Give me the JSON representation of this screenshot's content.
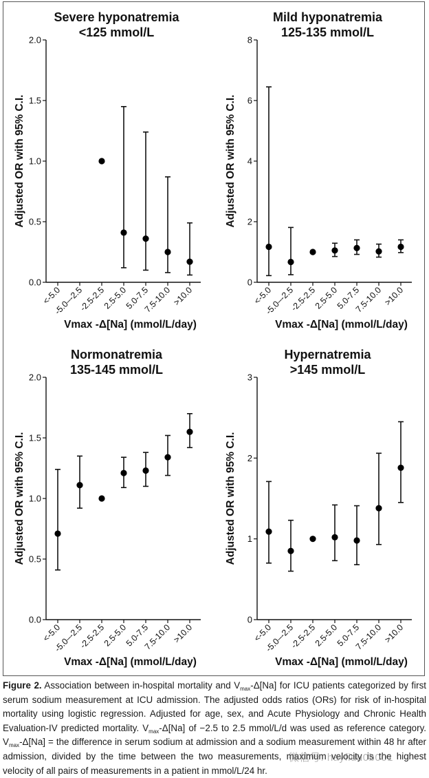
{
  "chart_data": [
    {
      "type": "scatter",
      "style": "point-with-error-bars",
      "title": "Severe hyponatremia",
      "subtitle": "<125 mmol/L",
      "xlabel": "Vmax -Δ[Na] (mmol/L/day)",
      "ylabel": "Adjusted OR with 95%  C.I.",
      "categories": [
        "<-5.0",
        "-5.0–-2.5",
        "-2.5-2.5",
        "2.5-5.0",
        "5.0-7.5",
        "7.5-10.0",
        ">10.0"
      ],
      "ylim": [
        0,
        2.0
      ],
      "yticks": [
        "0.0",
        "0.5",
        "1.0",
        "1.5",
        "2.0"
      ],
      "yticks_values": [
        0,
        0.5,
        1.0,
        1.5,
        2.0
      ],
      "points": [
        null,
        null,
        {
          "or": 1.0,
          "lo": null,
          "hi": null
        },
        {
          "or": 0.41,
          "lo": 0.12,
          "hi": 1.45
        },
        {
          "or": 0.36,
          "lo": 0.1,
          "hi": 1.24
        },
        {
          "or": 0.25,
          "lo": 0.08,
          "hi": 0.87
        },
        {
          "or": 0.17,
          "lo": 0.06,
          "hi": 0.49
        }
      ]
    },
    {
      "type": "scatter",
      "style": "point-with-error-bars",
      "title": "Mild hyponatremia",
      "subtitle": "125-135 mmol/L",
      "xlabel": "Vmax -Δ[Na] (mmol/L/day)",
      "ylabel": "Adjusted OR with 95%  C.I.",
      "categories": [
        "<-5.0",
        "-5.0–-2.5",
        "-2.5-2.5",
        "2.5-5.0",
        "5.0-7.5",
        "7.5-10.0",
        ">10.0"
      ],
      "ylim": [
        0,
        8
      ],
      "yticks": [
        "0",
        "2",
        "4",
        "6",
        "8"
      ],
      "yticks_values": [
        0,
        2,
        4,
        6,
        8
      ],
      "points": [
        {
          "or": 1.17,
          "lo": 0.22,
          "hi": 6.45
        },
        {
          "or": 0.67,
          "lo": 0.25,
          "hi": 1.81
        },
        {
          "or": 1.0,
          "lo": null,
          "hi": null
        },
        {
          "or": 1.05,
          "lo": 0.85,
          "hi": 1.29
        },
        {
          "or": 1.13,
          "lo": 0.92,
          "hi": 1.4
        },
        {
          "or": 1.02,
          "lo": 0.83,
          "hi": 1.26
        },
        {
          "or": 1.17,
          "lo": 0.98,
          "hi": 1.4
        }
      ]
    },
    {
      "type": "scatter",
      "style": "point-with-error-bars",
      "title": "Normonatremia",
      "subtitle": "135-145 mmol/L",
      "xlabel": "Vmax -Δ[Na] (mmol/L/day)",
      "ylabel": "Adjusted OR with 95%  C.I.",
      "categories": [
        "<-5.0",
        "-5.0–-2.5",
        "-2.5-2.5",
        "2.5-5.0",
        "5.0-7.5",
        "7.5-10.0",
        ">10.0"
      ],
      "ylim": [
        0,
        2.0
      ],
      "yticks": [
        "0.0",
        "0.5",
        "1.0",
        "1.5",
        "2.0"
      ],
      "yticks_values": [
        0,
        0.5,
        1.0,
        1.5,
        2.0
      ],
      "points": [
        {
          "or": 0.71,
          "lo": 0.41,
          "hi": 1.24
        },
        {
          "or": 1.11,
          "lo": 0.92,
          "hi": 1.35
        },
        {
          "or": 1.0,
          "lo": null,
          "hi": null
        },
        {
          "or": 1.21,
          "lo": 1.09,
          "hi": 1.34
        },
        {
          "or": 1.23,
          "lo": 1.1,
          "hi": 1.38
        },
        {
          "or": 1.34,
          "lo": 1.19,
          "hi": 1.52
        },
        {
          "or": 1.55,
          "lo": 1.42,
          "hi": 1.7
        }
      ]
    },
    {
      "type": "scatter",
      "style": "point-with-error-bars",
      "title": "Hypernatremia",
      "subtitle": ">145 mmol/L",
      "xlabel": "Vmax -Δ[Na] (mmol/L/day)",
      "ylabel": "Adjusted OR with 95%  C.I.",
      "categories": [
        "<-5.0",
        "-5.0–-2.5",
        "-2.5-2.5",
        "2.5-5.0",
        "5.0-7.5",
        "7.5-10.0",
        ">10.0"
      ],
      "ylim": [
        0,
        3
      ],
      "yticks": [
        "0",
        "1",
        "2",
        "3"
      ],
      "yticks_values": [
        0,
        1,
        2,
        3
      ],
      "points": [
        {
          "or": 1.09,
          "lo": 0.7,
          "hi": 1.71
        },
        {
          "or": 0.85,
          "lo": 0.6,
          "hi": 1.23
        },
        {
          "or": 1.0,
          "lo": null,
          "hi": null
        },
        {
          "or": 1.02,
          "lo": 0.73,
          "hi": 1.42
        },
        {
          "or": 0.98,
          "lo": 0.68,
          "hi": 1.41
        },
        {
          "or": 1.38,
          "lo": 0.93,
          "hi": 2.06
        },
        {
          "or": 1.88,
          "lo": 1.45,
          "hi": 2.45
        }
      ]
    }
  ],
  "caption": {
    "label": "Figure 2.",
    "t1": " Association between in-hospital mortality and V",
    "sub1": "max",
    "t2": "-Δ[Na] for ICU patients categorized by first serum sodium measurement at ICU admission. The adjusted odds ratios (ORs) for risk of in-hospital mortality using logistic regression. Adjusted for age, sex, and Acute Physiology and Chronic Health Evaluation-IV predicted mortality. V",
    "sub2": "max",
    "t3": "-Δ[Na] of −2.5 to 2.5 mmol/L/d was used as reference category. V",
    "sub3": "max",
    "t4": "-Δ[Na] = the difference in serum sodium at admission and a sodium measurement within 48 hr after admission, divided by the time between the two measurements, maximum velocity is the highest velocity of all pairs of measurements in a patient in mmol/L/24 hr."
  },
  "watermark": "微信号: hayfidu0b001"
}
